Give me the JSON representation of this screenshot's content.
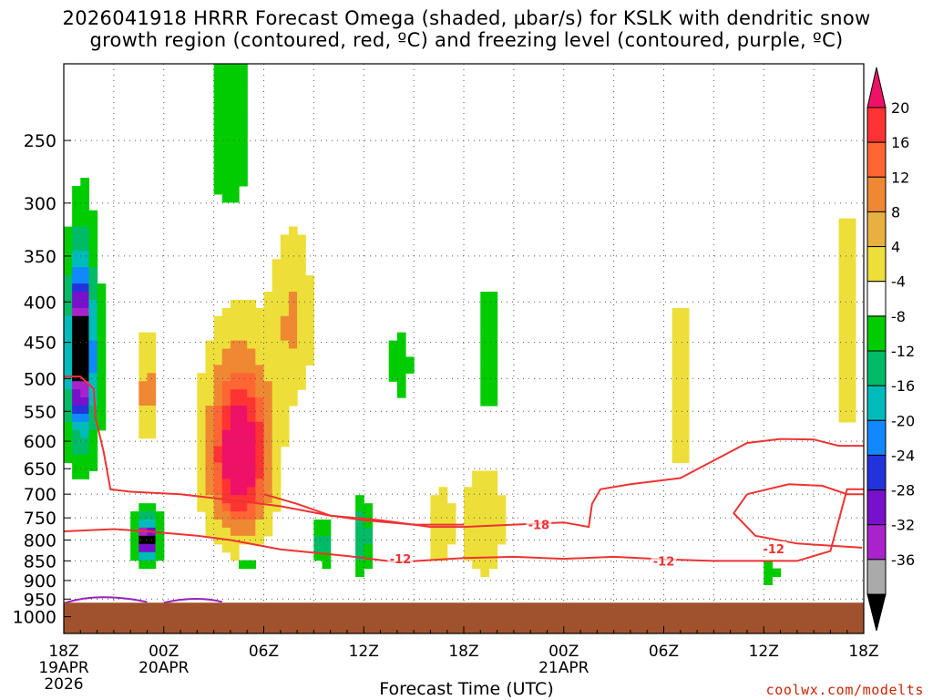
{
  "chart_data": {
    "type": "heatmap",
    "title_line1": "2026041918 HRRR Forecast Omega (shaded, µbar/s) for KSLK with dendritic snow",
    "title_line2": "growth region (contoured, red, ºC) and freezing level (contoured, purple, ºC)",
    "xlabel": "Forecast Time (UTC)",
    "x_ticks": [
      {
        "hour": 0,
        "label": "18Z",
        "date": "19APR",
        "year": "2026"
      },
      {
        "hour": 6,
        "label": "00Z",
        "date": "20APR",
        "year": ""
      },
      {
        "hour": 12,
        "label": "06Z",
        "date": "",
        "year": ""
      },
      {
        "hour": 18,
        "label": "12Z",
        "date": "",
        "year": ""
      },
      {
        "hour": 24,
        "label": "18Z",
        "date": "",
        "year": ""
      },
      {
        "hour": 30,
        "label": "00Z",
        "date": "21APR",
        "year": ""
      },
      {
        "hour": 36,
        "label": "06Z",
        "date": "",
        "year": ""
      },
      {
        "hour": 42,
        "label": "12Z",
        "date": "",
        "year": ""
      },
      {
        "hour": 48,
        "label": "18Z",
        "date": "",
        "year": ""
      }
    ],
    "y_ticks": [
      250,
      300,
      350,
      400,
      450,
      500,
      550,
      600,
      650,
      700,
      750,
      800,
      850,
      900,
      950,
      1000
    ],
    "ylim_hPa": [
      200,
      1050
    ],
    "xlim_hours": [
      0,
      48
    ],
    "colorbar_labels": [
      "20",
      "16",
      "12",
      "8",
      "4",
      "-4",
      "-8",
      "-12",
      "-16",
      "-20",
      "-24",
      "-28",
      "-32",
      "-36"
    ],
    "colorbar_colors": [
      "#ee1166",
      "#ff3333",
      "#ff6633",
      "#ee8833",
      "#e8b040",
      "#eede3a",
      "#ffffff",
      "#00cc00",
      "#00bb66",
      "#00bbbb",
      "#1188ff",
      "#2233dd",
      "#7711cc",
      "#aa22cc",
      "#aaaaaa",
      "#000000"
    ],
    "contour_labels": [
      "-18",
      "-12",
      "-12",
      "-12"
    ],
    "colors": {
      "terrain": "#a0522d",
      "contour_red": "#ee3333",
      "freezing_purple": "#9922bb"
    },
    "credit": "coolwx.com/modelts",
    "omega_features": [
      {
        "t": 1.0,
        "p": 460,
        "rt": 0.6,
        "rp": 90,
        "v": -30
      },
      {
        "t": 1.1,
        "p": 480,
        "rt": 1.2,
        "rp": 170,
        "v": -14
      },
      {
        "t": 5.0,
        "p": 800,
        "rt": 0.4,
        "rp": 30,
        "v": -34
      },
      {
        "t": 5.0,
        "p": 790,
        "rt": 0.9,
        "rp": 70,
        "v": -14
      },
      {
        "t": 5.0,
        "p": 520,
        "rt": 0.35,
        "rp": 90,
        "v": 14
      },
      {
        "t": 10.6,
        "p": 630,
        "rt": 1.6,
        "rp": 130,
        "v": 20
      },
      {
        "t": 10.4,
        "p": 600,
        "rt": 2.6,
        "rp": 230,
        "v": 8
      },
      {
        "t": 13.8,
        "p": 420,
        "rt": 1.3,
        "rp": 110,
        "v": 8
      },
      {
        "t": 11.0,
        "p": 850,
        "rt": 0.3,
        "rp": 30,
        "v": -18
      },
      {
        "t": 10.0,
        "p": 240,
        "rt": 1.6,
        "rp": 100,
        "v": -8
      },
      {
        "t": 17.9,
        "p": 790,
        "rt": 0.6,
        "rp": 90,
        "v": -12
      },
      {
        "t": 15.5,
        "p": 810,
        "rt": 0.7,
        "rp": 55,
        "v": -10
      },
      {
        "t": 25.2,
        "p": 760,
        "rt": 1.4,
        "rp": 150,
        "v": 8
      },
      {
        "t": 22.5,
        "p": 770,
        "rt": 1.0,
        "rp": 120,
        "v": 6
      },
      {
        "t": 25.5,
        "p": 470,
        "rt": 0.8,
        "rp": 110,
        "v": -8
      },
      {
        "t": 20.2,
        "p": 480,
        "rt": 0.9,
        "rp": 70,
        "v": -6
      },
      {
        "t": 37.0,
        "p": 520,
        "rt": 1.3,
        "rp": 260,
        "v": 5
      },
      {
        "t": 42.3,
        "p": 880,
        "rt": 0.7,
        "rp": 30,
        "v": -7
      },
      {
        "t": 47.0,
        "p": 440,
        "rt": 1.2,
        "rp": 300,
        "v": 5
      }
    ]
  }
}
